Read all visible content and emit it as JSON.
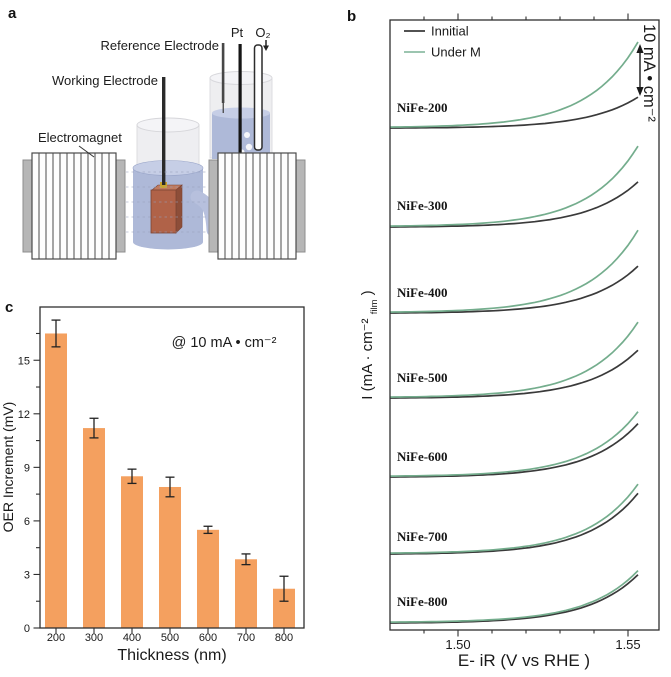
{
  "panels": {
    "a": {
      "letter": "a",
      "labels": {
        "reference_electrode": "Reference Electrode",
        "working_electrode": "Working Electrode",
        "electromagnet": "Electromagnet",
        "pt": "Pt",
        "o2": "O₂"
      }
    },
    "b": {
      "letter": "b",
      "legend": [
        "Innitial",
        "Under M"
      ],
      "scale_bar_label": "10 mA • cm⁻²",
      "xlabel": "E- iR (V vs RHE )",
      "ylabel_main": "I (mA · cm⁻²",
      "ylabel_sub": "film",
      "ylabel_end": " )",
      "xtick_labels": [
        "1.50",
        "1.55"
      ]
    },
    "c": {
      "letter": "c",
      "annotation": "@ 10 mA • cm⁻²",
      "xlabel": "Thickness (nm)",
      "ylabel": "OER Increment (mV)"
    }
  },
  "chart_data": [
    {
      "panel": "b",
      "type": "line",
      "xlabel": "E- iR (V vs RHE )",
      "ylabel": "I (mA · cm⁻² film)",
      "x_range": [
        1.48,
        1.558
      ],
      "x_ticks": [
        1.5,
        1.55
      ],
      "legend": [
        "Innitial",
        "Under M"
      ],
      "legend_position": "top-left",
      "scale_bar": {
        "label": "10 mA • cm⁻²",
        "value": 10
      },
      "series_colors": {
        "initial": "#3a3a3a",
        "under_m": "#74ad8d"
      },
      "samples": [
        {
          "name": "NiFe-200",
          "initial_end_mA": 6.7,
          "under_m_end_mA": 18.5
        },
        {
          "name": "NiFe-300",
          "initial_end_mA": 9.8,
          "under_m_end_mA": 17.4
        },
        {
          "name": "NiFe-400",
          "initial_end_mA": 10.2,
          "under_m_end_mA": 17.8
        },
        {
          "name": "NiFe-500",
          "initial_end_mA": 10.4,
          "under_m_end_mA": 16.3
        },
        {
          "name": "NiFe-600",
          "initial_end_mA": 11.6,
          "under_m_end_mA": 14.0
        },
        {
          "name": "NiFe-700",
          "initial_end_mA": 13.2,
          "under_m_end_mA": 15.0
        },
        {
          "name": "NiFe-800",
          "initial_end_mA": 10.5,
          "under_m_end_mA": 11.2
        }
      ],
      "note": "stacked offset LSV curves; each sample pair shares a baseline, vertical scale given by scale bar"
    },
    {
      "panel": "c",
      "type": "bar",
      "categories": [
        200,
        300,
        400,
        500,
        600,
        700,
        800
      ],
      "values": [
        16.5,
        11.2,
        8.5,
        7.9,
        5.5,
        3.85,
        2.2
      ],
      "errors": [
        0.75,
        0.55,
        0.4,
        0.55,
        0.2,
        0.3,
        0.7
      ],
      "xlabel": "Thickness (nm)",
      "ylabel": "OER Increment (mV)",
      "ylim": [
        0,
        18
      ],
      "yticks": [
        0,
        3,
        6,
        9,
        12,
        15
      ],
      "annotation": "@ 10 mA • cm⁻²",
      "bar_color": "#f4a05f"
    }
  ],
  "colors": {
    "electrolyte": "#aeb9d8",
    "electrolyte_light": "#c6cee6",
    "glass": "#ececef",
    "glass_edge": "#d6d6da",
    "sample": "#b06248",
    "sample_side": "#8d4e39",
    "sample_top": "#c07a5d",
    "connector": "#c9a42c",
    "magnet_cap": "#b6b6b6",
    "magnet_stripe": "#4a4a4a",
    "field_line": "#97a0bc",
    "initial_line": "#3a3a3a",
    "under_m_line": "#74ad8d",
    "bar": "#f4a05f"
  }
}
